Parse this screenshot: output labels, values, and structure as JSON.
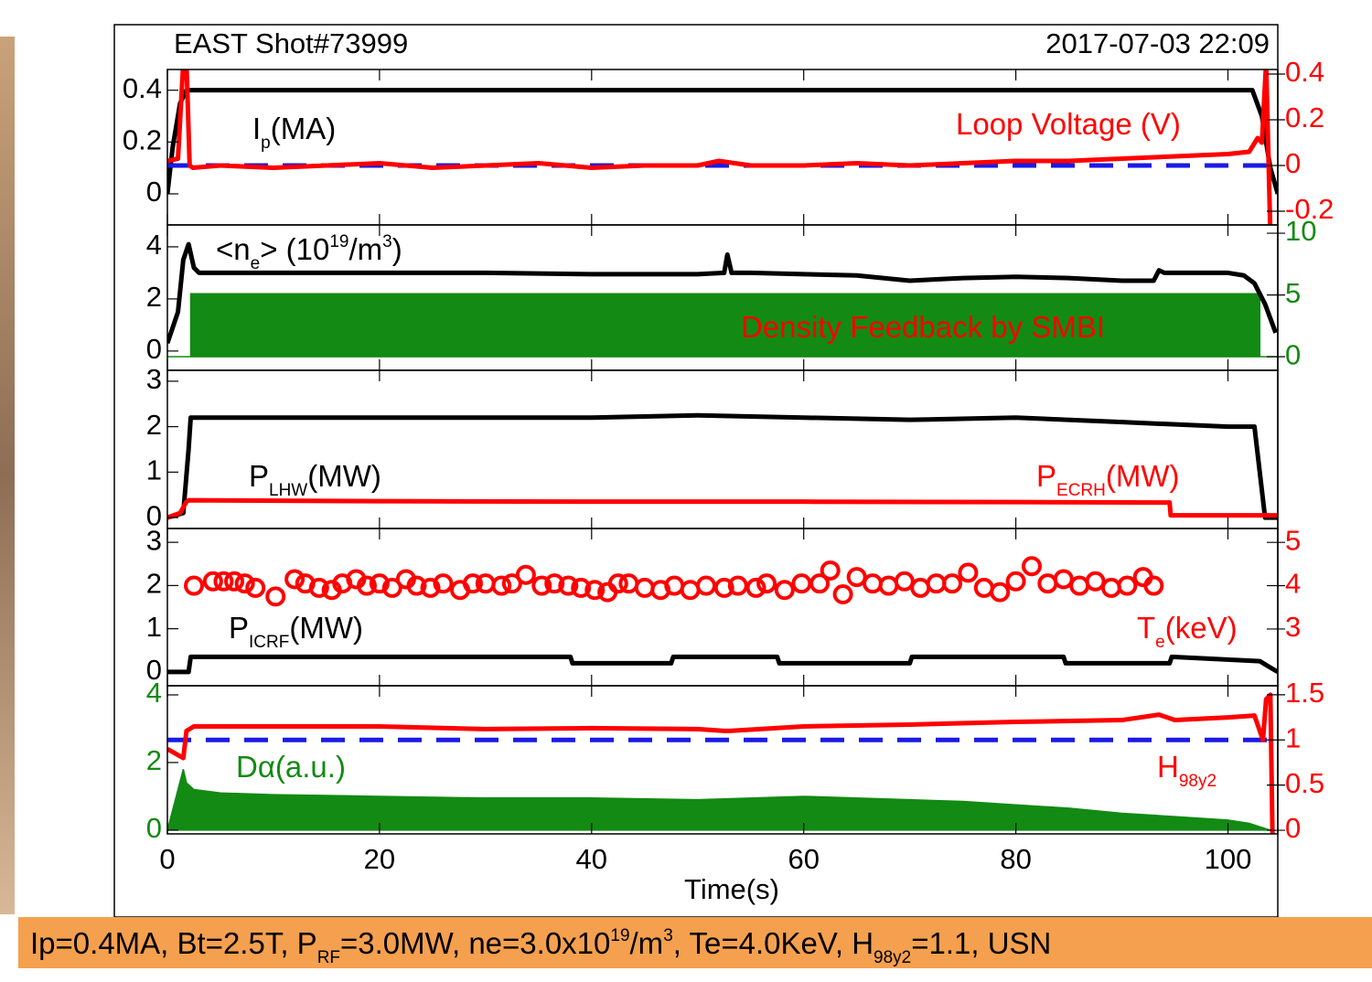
{
  "chart_data": [
    {
      "type": "line",
      "title": "EAST Shot#73999",
      "subtitle": "2017-07-03 22:09",
      "xlim": [
        0,
        104.7
      ],
      "xticks": [
        0,
        20,
        40,
        60,
        80,
        100
      ],
      "ylim": [
        -0.12,
        0.48
      ],
      "yticks": [
        0,
        0.2,
        0.4
      ],
      "ycolor": "#000000",
      "y2lim": [
        -0.26,
        0.42
      ],
      "y2ticks": [
        -0.2,
        0,
        0.2,
        0.4
      ],
      "y2color": "#ff0000",
      "annotations": [
        [
          "I",
          "p",
          "(MA)"
        ],
        [
          "Loop Voltage (V)"
        ]
      ],
      "series": [
        {
          "kind": "line",
          "color": "#000000",
          "x": [
            0,
            0.5,
            1.2,
            1.8,
            100,
            102.3,
            103.2,
            104,
            104.7
          ],
          "values": [
            0,
            0.18,
            0.35,
            0.4,
            0.4,
            0.4,
            0.3,
            0.1,
            0
          ]
        },
        {
          "kind": "line",
          "dash": true,
          "color": "#1a1ae6",
          "axis": "y2",
          "x": [
            0,
            104.7
          ],
          "values": [
            0,
            0
          ]
        },
        {
          "kind": "line",
          "color": "#ff0000",
          "axis": "y2",
          "x": [
            0,
            1,
            1.5,
            1.8,
            2.1,
            2.4,
            5,
            10,
            15,
            20,
            25,
            30,
            35,
            40,
            45,
            50,
            52,
            55,
            60,
            65,
            70,
            75,
            80,
            85,
            90,
            95,
            100,
            102,
            102.8,
            103.2,
            103.6,
            104
          ],
          "values": [
            0.02,
            0.03,
            0.45,
            0.45,
            0.0,
            -0.01,
            0.0,
            -0.01,
            0.0,
            0.01,
            -0.01,
            0.0,
            0.01,
            -0.01,
            0.0,
            0.0,
            0.02,
            0.0,
            0.0,
            0.01,
            0.0,
            0.01,
            0.02,
            0.02,
            0.03,
            0.04,
            0.05,
            0.06,
            0.12,
            0.1,
            0.45,
            -0.3
          ]
        }
      ]
    },
    {
      "type": "line",
      "xlim": [
        0,
        104.7
      ],
      "xticks": [
        0,
        20,
        40,
        60,
        80,
        100
      ],
      "ylim": [
        -0.74,
        4.84
      ],
      "yticks": [
        0,
        2,
        4
      ],
      "ycolor": "#000000",
      "y2lim": [
        -1.1,
        10.67
      ],
      "y2ticks": [
        0,
        5,
        10
      ],
      "y2color": "#138a13",
      "annotations": [
        [
          "<n",
          "e",
          "> (10",
          "19",
          "/m",
          "3",
          ")"
        ],
        [
          "Density Feedback by SMBI"
        ]
      ],
      "series": [
        {
          "kind": "area",
          "color": "#138a13",
          "axis": "y2",
          "x": [
            0,
            2.2,
            2.2,
            103,
            103,
            104.7
          ],
          "values": [
            0,
            0,
            5.1,
            5.1,
            0,
            0
          ]
        },
        {
          "kind": "line",
          "color": "#000000",
          "x": [
            0,
            1,
            1.5,
            2,
            2.5,
            3,
            10,
            20,
            30,
            40,
            50,
            52.5,
            52.8,
            53.2,
            55,
            60,
            65,
            70,
            75,
            80,
            85,
            90,
            93,
            93.5,
            94,
            100,
            101.5,
            102.5,
            103.5,
            104.5
          ],
          "values": [
            0.3,
            1.5,
            3.5,
            4.1,
            3.2,
            3.0,
            3.0,
            3.0,
            3.0,
            2.95,
            2.95,
            3.0,
            3.7,
            3.0,
            3.0,
            2.95,
            2.9,
            2.7,
            2.8,
            2.85,
            2.8,
            2.7,
            2.7,
            3.1,
            3.0,
            3.0,
            2.9,
            2.6,
            1.8,
            0.7
          ]
        }
      ]
    },
    {
      "type": "line",
      "xlim": [
        0,
        104.7
      ],
      "xticks": [
        0,
        20,
        40,
        60,
        80,
        100
      ],
      "ylim": [
        -0.24,
        3.24
      ],
      "yticks": [
        0,
        1,
        2,
        3
      ],
      "ycolor": "#000000",
      "annotations": [
        [
          "P",
          "LHW",
          "(MW)"
        ],
        [
          "P",
          "ECRH",
          "(MW)"
        ]
      ],
      "series": [
        {
          "kind": "line",
          "color": "#000000",
          "x": [
            0,
            1.5,
            2,
            2.2,
            10,
            20,
            30,
            40,
            50,
            60,
            70,
            80,
            90,
            95,
            100,
            102.5,
            103,
            103.5,
            104.7
          ],
          "values": [
            0,
            0.1,
            1.5,
            2.2,
            2.2,
            2.2,
            2.2,
            2.2,
            2.25,
            2.2,
            2.15,
            2.2,
            2.1,
            2.05,
            2.0,
            2.0,
            1.0,
            0,
            0
          ]
        },
        {
          "kind": "line",
          "color": "#ff0000",
          "x": [
            0,
            1.2,
            1.8,
            2,
            20,
            40,
            60,
            80,
            94.5,
            94.6,
            104.7
          ],
          "values": [
            0,
            0.1,
            0.35,
            0.38,
            0.36,
            0.35,
            0.35,
            0.34,
            0.33,
            0.05,
            0.05
          ]
        }
      ]
    },
    {
      "type": "line",
      "xlim": [
        0,
        104.7
      ],
      "xticks": [
        0,
        20,
        40,
        60,
        80,
        100
      ],
      "ylim": [
        -0.32,
        3.32
      ],
      "yticks": [
        0,
        1,
        2,
        3
      ],
      "ycolor": "#000000",
      "y2lim": [
        1.69,
        5.32
      ],
      "y2ticks": [
        3,
        4,
        5
      ],
      "y2color": "#ff0000",
      "annotations": [
        [
          "P",
          "ICRF",
          "(MW)"
        ],
        [
          "T",
          "e",
          "(keV)"
        ]
      ],
      "series": [
        {
          "kind": "line",
          "color": "#000000",
          "x": [
            0,
            2,
            2.2,
            38,
            38.2,
            47.5,
            47.7,
            57.5,
            57.7,
            70,
            70.2,
            84.5,
            84.7,
            94.5,
            94.7,
            103,
            104,
            104.7
          ],
          "values": [
            0,
            0,
            0.35,
            0.35,
            0.2,
            0.2,
            0.35,
            0.35,
            0.2,
            0.2,
            0.35,
            0.35,
            0.2,
            0.2,
            0.35,
            0.25,
            0.1,
            0
          ]
        },
        {
          "kind": "scatter",
          "color": "#ff0000",
          "axis": "y2",
          "x": [
            2.5,
            4.3,
            5.3,
            6.3,
            7.3,
            8.3,
            10.2,
            12,
            13,
            14.3,
            15.5,
            16.5,
            17.8,
            18.8,
            20,
            21.2,
            22.5,
            23.5,
            24.8,
            26,
            27.6,
            28.8,
            30,
            31.5,
            32.5,
            33.8,
            35.3,
            36.5,
            37.8,
            39,
            40.3,
            41.5,
            42.5,
            43.5,
            45,
            46.5,
            47.8,
            49.3,
            50.8,
            52.5,
            53.8,
            55.5,
            56.5,
            58.2,
            59.8,
            61.5,
            62.5,
            63.7,
            65,
            66.5,
            68,
            69.5,
            71,
            72.5,
            74,
            75.5,
            77,
            78.5,
            80,
            81.5,
            83,
            84.5,
            86,
            87.5,
            89,
            90.5,
            92,
            93
          ],
          "values": [
            4.0,
            4.1,
            4.1,
            4.1,
            4.05,
            3.95,
            3.75,
            4.15,
            4.05,
            3.95,
            3.9,
            4.05,
            4.15,
            4.0,
            4.05,
            3.95,
            4.15,
            4.0,
            3.95,
            4.05,
            3.9,
            4.05,
            4.05,
            4.0,
            4.05,
            4.25,
            4.0,
            4.05,
            4.0,
            3.95,
            3.9,
            3.85,
            4.05,
            4.05,
            3.95,
            3.9,
            4.0,
            3.9,
            4.0,
            3.95,
            4.0,
            3.95,
            4.05,
            3.9,
            4.05,
            4.05,
            4.35,
            3.8,
            4.2,
            4.05,
            4.0,
            4.1,
            3.95,
            4.05,
            4.05,
            4.3,
            3.95,
            3.85,
            4.1,
            4.45,
            4.05,
            4.15,
            4.0,
            4.1,
            3.95,
            4.0,
            4.2,
            4.0
          ]
        }
      ]
    },
    {
      "type": "line",
      "xlabel": "Time(s)",
      "xticklabels": true,
      "xlim": [
        0,
        104.7
      ],
      "xticks": [
        0,
        20,
        40,
        60,
        80,
        100
      ],
      "ylim": [
        -0.11,
        4.27
      ],
      "yticks": [
        0,
        2,
        4
      ],
      "ycolor": "#138a13",
      "y2lim": [
        -0.04,
        1.6
      ],
      "y2ticks": [
        0,
        0.5,
        1,
        1.5
      ],
      "y2color": "#ff0000",
      "annotations": [
        [
          "Dα(a.u.)"
        ],
        [
          "H",
          "98y2"
        ]
      ],
      "series": [
        {
          "kind": "area",
          "color": "#138a13",
          "x": [
            0,
            1,
            1.5,
            1.8,
            2.5,
            5,
            10,
            20,
            30,
            40,
            50,
            60,
            70,
            75,
            80,
            85,
            90,
            95,
            100,
            102,
            103.5,
            104
          ],
          "values": [
            0,
            1.2,
            1.8,
            1.4,
            1.2,
            1.1,
            1.05,
            1.0,
            0.95,
            0.95,
            0.9,
            1.0,
            0.9,
            0.85,
            0.75,
            0.65,
            0.5,
            0.4,
            0.3,
            0.2,
            0.05,
            0
          ]
        },
        {
          "kind": "line",
          "dash": true,
          "color": "#1a1ae6",
          "axis": "y2",
          "x": [
            0,
            104.7
          ],
          "values": [
            1,
            1
          ]
        },
        {
          "kind": "line",
          "color": "#ff0000",
          "axis": "y2",
          "x": [
            0,
            1.5,
            1.8,
            2.5,
            10,
            20,
            30,
            40,
            50,
            52.5,
            53,
            60,
            70,
            80,
            90,
            93.5,
            95,
            100,
            102.5,
            103.3,
            103.6,
            104,
            104.2
          ],
          "values": [
            0.9,
            0.8,
            1.1,
            1.15,
            1.15,
            1.15,
            1.12,
            1.13,
            1.12,
            1.1,
            1.1,
            1.15,
            1.17,
            1.2,
            1.22,
            1.28,
            1.22,
            1.25,
            1.27,
            1.0,
            1.45,
            1.5,
            -0.05
          ]
        }
      ]
    }
  ],
  "footer": {
    "parts": [
      "Ip=0.4MA, Bt=2.5T, P",
      "RF",
      "=3.0MW, ne=3.0x10",
      "19",
      "/m",
      "3",
      ", Te=4.0KeV, H",
      "98y2",
      "=1.1, USN"
    ]
  }
}
